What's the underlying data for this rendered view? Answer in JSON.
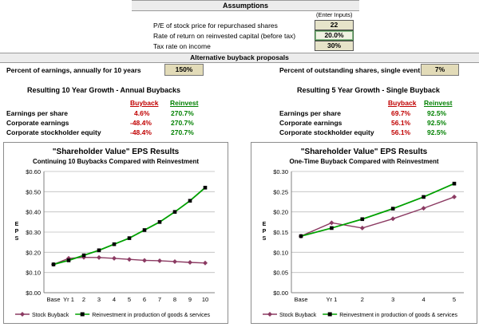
{
  "assumptions": {
    "title": "Assumptions",
    "enter_inputs": "(Enter Inputs)",
    "rows": [
      {
        "label": "P/E of stock price for repurchased shares",
        "value": "22"
      },
      {
        "label": "Rate of return on reinvested capital (before tax)",
        "value": "20.0%"
      },
      {
        "label": "Tax rate on income",
        "value": "30%"
      }
    ]
  },
  "proposals": {
    "title": "Alternative buyback proposals",
    "left_label": "Percent of earnings, annually for 10 years",
    "left_value": "150%",
    "right_label": "Percent of outstanding shares, single event",
    "right_value": "7%"
  },
  "growth_annual": {
    "title": "Resulting 10 Year Growth - Annual Buybacks",
    "col_buyback": "Buyback",
    "col_reinvest": "Reinvest",
    "rows": [
      {
        "label": "Earnings per share",
        "buyback": "4.6%",
        "reinvest": "270.7%"
      },
      {
        "label": "Corporate earnings",
        "buyback": "-48.4%",
        "reinvest": "270.7%"
      },
      {
        "label": "Corporate stockholder equity",
        "buyback": "-48.4%",
        "reinvest": "270.7%"
      }
    ]
  },
  "growth_single": {
    "title": "Resulting 5 Year Growth - Single Buyback",
    "col_buyback": "Buyback",
    "col_reinvest": "Reinvest",
    "rows": [
      {
        "label": "Earnings per share",
        "buyback": "69.7%",
        "reinvest": "92.5%"
      },
      {
        "label": "Corporate earnings",
        "buyback": "56.1%",
        "reinvest": "92.5%"
      },
      {
        "label": "Corporate stockholder equity",
        "buyback": "56.1%",
        "reinvest": "92.5%"
      }
    ]
  },
  "chart_data": [
    {
      "type": "line",
      "title": "\"Shareholder Value\" EPS Results",
      "subtitle": "Continuing 10 Buybacks Compared with Reinvestment",
      "ylabel": "E P S",
      "xlabel": "",
      "categories": [
        "Base",
        "Yr 1",
        "2",
        "3",
        "4",
        "5",
        "6",
        "7",
        "8",
        "9",
        "10"
      ],
      "ylim": [
        0,
        0.6
      ],
      "yticks": [
        "$0.00",
        "$0.10",
        "$0.20",
        "$0.30",
        "$0.40",
        "$0.50",
        "$0.60"
      ],
      "grid": true,
      "legend": "bottom",
      "series": [
        {
          "name": "Stock Buyback",
          "color": "#8b3a62",
          "marker": "diamond",
          "values": [
            0.14,
            0.17,
            0.175,
            0.174,
            0.17,
            0.165,
            0.16,
            0.158,
            0.154,
            0.15,
            0.147
          ]
        },
        {
          "name": "Reinvestment in production of goods & services",
          "color": "#00a000",
          "marker": "square",
          "values": [
            0.14,
            0.16,
            0.185,
            0.21,
            0.24,
            0.27,
            0.31,
            0.35,
            0.4,
            0.455,
            0.52
          ]
        }
      ]
    },
    {
      "type": "line",
      "title": "\"Shareholder Value\" EPS Results",
      "subtitle": "One-Time Buyback Compared with Reinvestment",
      "ylabel": "E P S",
      "xlabel": "",
      "categories": [
        "Base",
        "Yr 1",
        "2",
        "3",
        "4",
        "5"
      ],
      "ylim": [
        0,
        0.3
      ],
      "yticks": [
        "$0.00",
        "$0.05",
        "$0.10",
        "$0.15",
        "$0.20",
        "$0.25",
        "$0.30"
      ],
      "grid": true,
      "legend": "bottom",
      "series": [
        {
          "name": "Stock Buyback",
          "color": "#8b3a62",
          "marker": "diamond",
          "values": [
            0.14,
            0.173,
            0.16,
            0.183,
            0.209,
            0.237
          ]
        },
        {
          "name": "Reinvestment in production of goods & services",
          "color": "#00a000",
          "marker": "square",
          "values": [
            0.14,
            0.16,
            0.182,
            0.208,
            0.237,
            0.27
          ]
        }
      ]
    }
  ]
}
